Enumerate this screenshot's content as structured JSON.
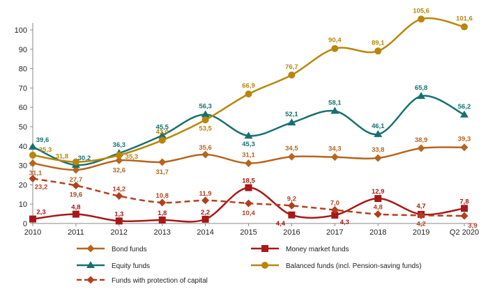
{
  "chart_data": {
    "type": "line",
    "title": "",
    "xlabel": "",
    "ylabel": "",
    "ylim": [
      0,
      100
    ],
    "yticks": [
      0,
      10,
      20,
      30,
      40,
      50,
      60,
      70,
      80,
      90,
      100
    ],
    "categories": [
      "2010",
      "2011",
      "2012",
      "2013",
      "2014",
      "2015",
      "2016",
      "2017",
      "2018",
      "2019",
      "Q2 2020"
    ],
    "grid": false,
    "legend_position": "bottom",
    "series": [
      {
        "name": "Bond funds",
        "color": "#B8641E",
        "marker": "diamond",
        "dashed": false,
        "values": [
          31.1,
          27.7,
          32.6,
          31.7,
          35.6,
          31.1,
          34.5,
          34.3,
          33.8,
          38.9,
          39.3
        ],
        "labels": [
          "31,1",
          "27,7",
          "32,6",
          "31,7",
          "35,6",
          "31,1",
          "34,5",
          "34,3",
          "33,8",
          "38,9",
          "39,3"
        ]
      },
      {
        "name": "Money market funds",
        "color": "#A81818",
        "marker": "square",
        "dashed": false,
        "values": [
          2.3,
          4.8,
          1.3,
          1.8,
          2.2,
          18.5,
          4.4,
          4.3,
          12.9,
          4.7,
          7.8
        ],
        "labels": [
          "2,3",
          "4,8",
          "1,3",
          "1,8",
          "2,2",
          "18,5",
          "4,4",
          "4,3",
          "12,9",
          "4,7",
          "7,8"
        ]
      },
      {
        "name": "Equity funds",
        "color": "#17706F",
        "marker": "triangle",
        "dashed": false,
        "values": [
          39.6,
          30.2,
          36.3,
          45.5,
          56.3,
          45.3,
          52.1,
          58.1,
          46.1,
          65.8,
          56.2
        ],
        "labels": [
          "39,6",
          "30,2",
          "36,3",
          "45,5",
          "56,3",
          "45,3",
          "52,1",
          "58,1",
          "46,1",
          "65,8",
          "56,2"
        ]
      },
      {
        "name": "Balanced funds (incl. Pension-saving funds)",
        "color": "#B8860B",
        "marker": "circle",
        "dashed": false,
        "values": [
          35.3,
          31.8,
          35.3,
          43.0,
          53.5,
          66.9,
          76.7,
          90.4,
          89.1,
          105.6,
          101.6
        ],
        "labels": [
          "35,3",
          "31,8",
          "35,3",
          "43,0",
          "53,5",
          "66,9",
          "76,7",
          "90,4",
          "89,1",
          "105,6",
          "101,6"
        ]
      },
      {
        "name": "Funds with protection of capital",
        "color": "#B0401E",
        "marker": "diamond",
        "dashed": true,
        "values": [
          23.2,
          19.6,
          14.2,
          10.8,
          11.9,
          10.4,
          9.2,
          7.0,
          4.8,
          4.2,
          3.9
        ],
        "labels": [
          "23,2",
          "19,6",
          "14,2",
          "10,8",
          "11,9",
          "10,4",
          "9,2",
          "7,0",
          "4,8",
          "4,2",
          "3,9"
        ]
      }
    ]
  }
}
